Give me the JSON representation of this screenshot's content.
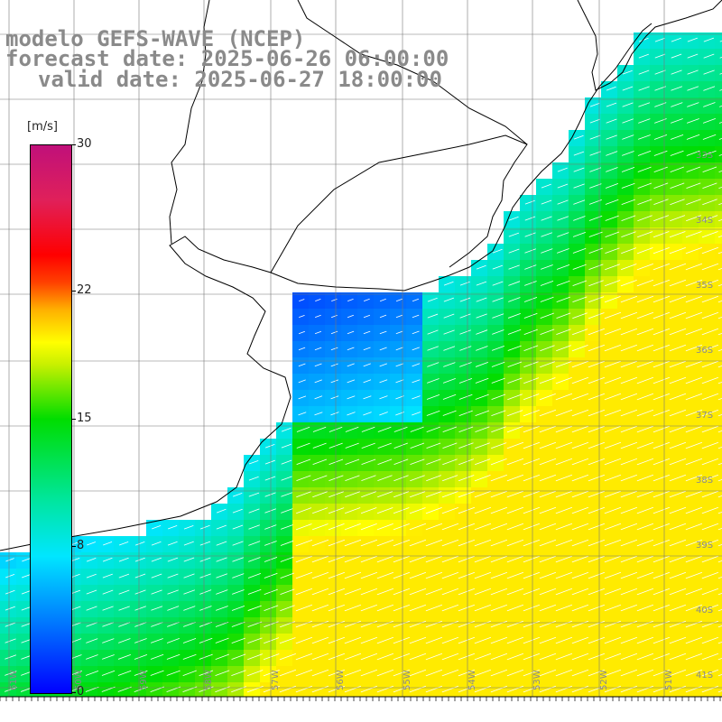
{
  "title": {
    "line1": "modelo GEFS-WAVE (NCEP)",
    "line2": "forecast date: 2025-06-26 06:00:00",
    "line3": "valid date: 2025-06-27 18:00:00"
  },
  "legend": {
    "unit": "[m/s]",
    "ticks": [
      "30",
      "22",
      "15",
      "8",
      "0"
    ],
    "tick_values": [
      30,
      22,
      15,
      8,
      0
    ],
    "range": [
      0,
      30
    ],
    "colors": [
      "#0000ff",
      "#0070ff",
      "#00e6ff",
      "#00dd00",
      "#ffff00",
      "#ff0000",
      "#c0107a"
    ]
  },
  "grid": {
    "lat_labels": [
      "33S",
      "34S",
      "35S",
      "36S",
      "37S",
      "38S",
      "39S",
      "40S",
      "41S"
    ],
    "lon_labels": [
      "61W",
      "60W",
      "59W",
      "58W",
      "57W",
      "56W",
      "55W",
      "54W",
      "53W",
      "52W",
      "51W"
    ]
  },
  "colors": {
    "land": "#ffffff",
    "coastline": "#000000",
    "grid": "#777777",
    "text": "#8a8a8a",
    "arrow": "#ffffff"
  }
}
